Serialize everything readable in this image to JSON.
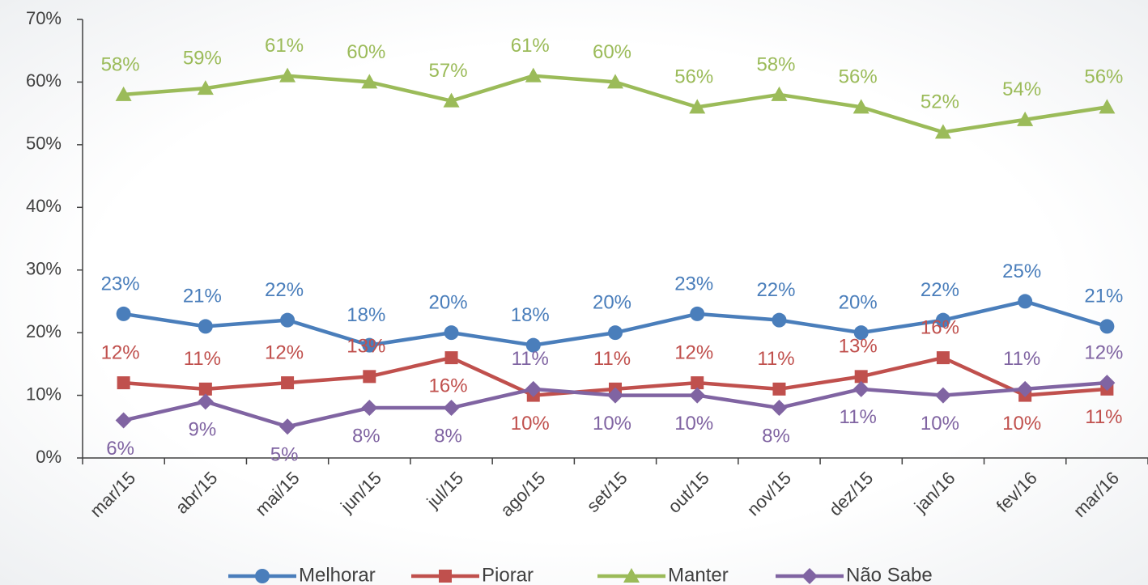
{
  "chart_data": {
    "type": "line",
    "categories": [
      "mar/15",
      "abr/15",
      "mai/15",
      "jun/15",
      "jul/15",
      "ago/15",
      "set/15",
      "out/15",
      "nov/15",
      "dez/15",
      "jan/16",
      "fev/16",
      "mar/16"
    ],
    "series": [
      {
        "name": "Melhorar",
        "color": "#4a7ebb",
        "marker": "circle",
        "values": [
          23,
          21,
          22,
          18,
          20,
          18,
          20,
          23,
          22,
          20,
          22,
          25,
          21
        ],
        "value_labels": [
          "23%",
          "21%",
          "22%",
          "18%",
          "20%",
          "18%",
          "20%",
          "23%",
          "22%",
          "20%",
          "22%",
          "25%",
          "21%"
        ]
      },
      {
        "name": "Piorar",
        "color": "#c0504d",
        "marker": "square",
        "values": [
          12,
          11,
          12,
          13,
          16,
          10,
          11,
          12,
          11,
          13,
          16,
          10,
          11
        ],
        "value_labels": [
          "12%",
          "11%",
          "12%",
          "13%",
          "16%",
          "10%",
          "11%",
          "12%",
          "11%",
          "13%",
          "16%",
          "10%",
          "11%"
        ]
      },
      {
        "name": "Manter",
        "color": "#9bbb59",
        "marker": "triangle",
        "values": [
          58,
          59,
          61,
          60,
          57,
          61,
          60,
          56,
          58,
          56,
          52,
          54,
          56
        ],
        "value_labels": [
          "58%",
          "59%",
          "61%",
          "60%",
          "57%",
          "61%",
          "60%",
          "56%",
          "58%",
          "56%",
          "52%",
          "54%",
          "56%"
        ]
      },
      {
        "name": "Não Sabe",
        "color": "#8064a2",
        "marker": "diamond",
        "values": [
          6,
          9,
          5,
          8,
          8,
          11,
          10,
          10,
          8,
          11,
          10,
          11,
          12
        ],
        "value_labels": [
          "6%",
          "9%",
          "5%",
          "8%",
          "8%",
          "11%",
          "10%",
          "10%",
          "8%",
          "11%",
          "10%",
          "11%",
          "12%"
        ]
      }
    ],
    "ylim": [
      0,
      70
    ],
    "yticks": [
      {
        "value": 0,
        "label": "0%"
      },
      {
        "value": 10,
        "label": "10%"
      },
      {
        "value": 20,
        "label": "20%"
      },
      {
        "value": 30,
        "label": "30%"
      },
      {
        "value": 40,
        "label": "40%"
      },
      {
        "value": 50,
        "label": "50%"
      },
      {
        "value": 60,
        "label": "60%"
      },
      {
        "value": 70,
        "label": "70%"
      }
    ],
    "grid": false,
    "legend": "bottom"
  }
}
